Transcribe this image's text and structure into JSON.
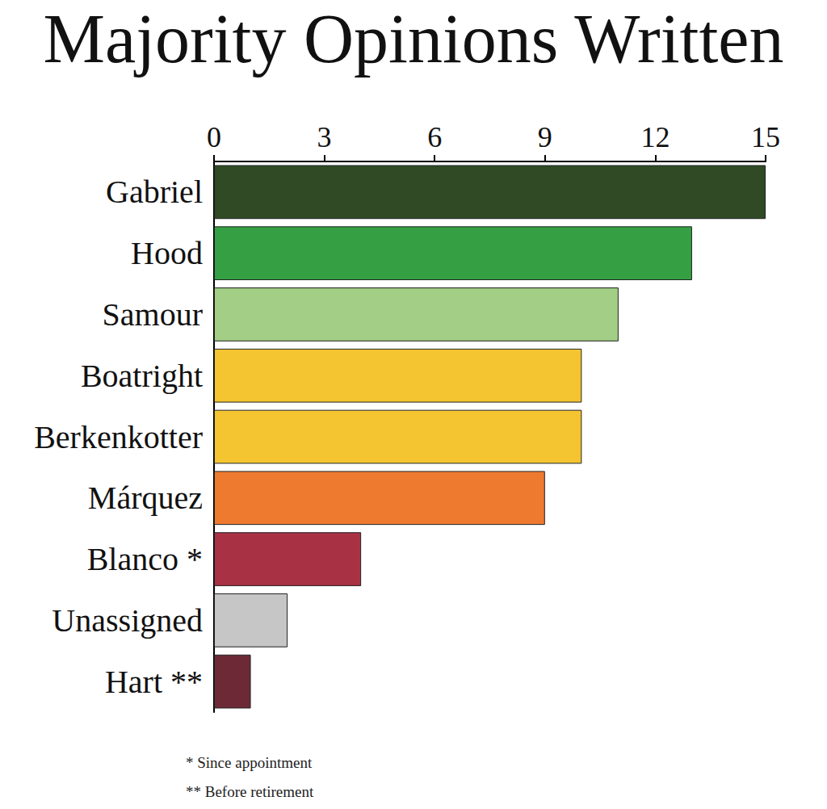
{
  "chart_data": {
    "type": "bar",
    "title": "Majority Opinions Written",
    "orientation": "horizontal",
    "categories": [
      "Gabriel",
      "Hood",
      "Samour",
      "Boatright",
      "Berkenkotter",
      "Márquez",
      "Blanco *",
      "Unassigned",
      "Hart **"
    ],
    "values": [
      15,
      13,
      11,
      10,
      10,
      9,
      4,
      2,
      1
    ],
    "colors": [
      "#2f4a24",
      "#35a043",
      "#a2cf85",
      "#f4c530",
      "#f4c530",
      "#ee7a2f",
      "#a83244",
      "#c6c6c6",
      "#6d2a36"
    ],
    "xlim": [
      0,
      15
    ],
    "xticks": [
      0,
      3,
      6,
      9,
      12,
      15
    ],
    "grid": false,
    "annotations": [
      "* Since appointment",
      "** Before retirement"
    ]
  }
}
